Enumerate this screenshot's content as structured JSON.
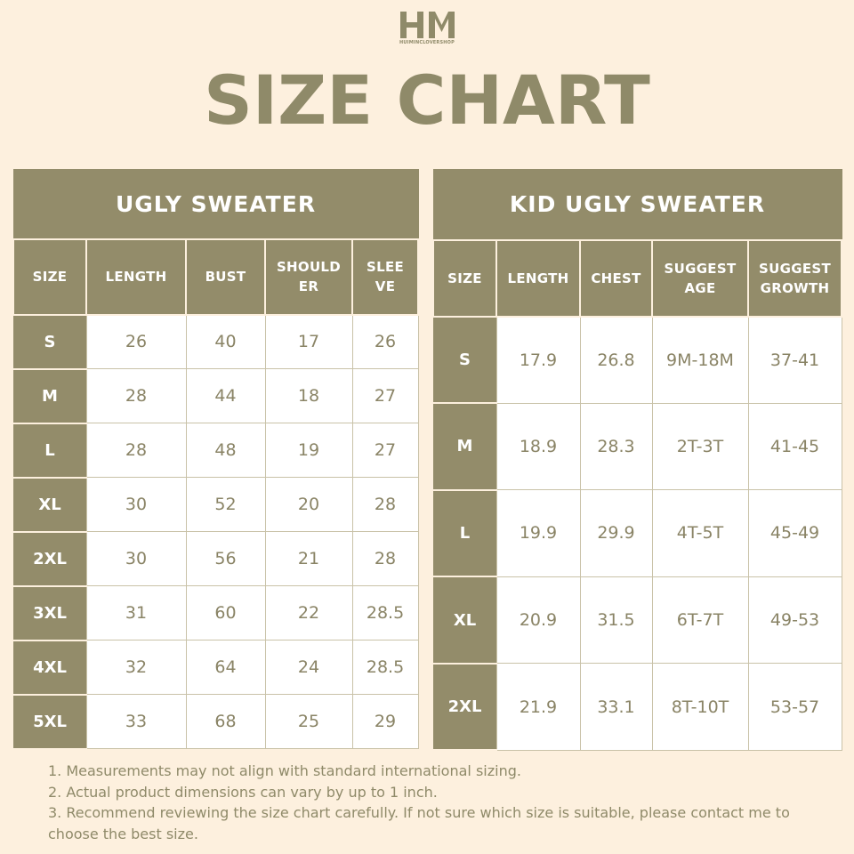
{
  "brand": {
    "logo_letters": "HM",
    "name": "HUIMINCLOVERSHOP"
  },
  "title": "SIZE CHART",
  "colors": {
    "background": "#fdf0de",
    "accent": "#938c6a",
    "cell": "#ffffff"
  },
  "adult": {
    "title": "UGLY SWEATER",
    "headers": [
      "SIZE",
      "LENGTH",
      "BUST",
      "SHOULD ER",
      "SLEE VE"
    ],
    "headers_lines": [
      [
        "SIZE"
      ],
      [
        "LENGTH"
      ],
      [
        "BUST"
      ],
      [
        "SHOULD",
        "ER"
      ],
      [
        "SLEE",
        "VE"
      ]
    ],
    "rows": [
      [
        "S",
        "26",
        "40",
        "17",
        "26"
      ],
      [
        "M",
        "28",
        "44",
        "18",
        "27"
      ],
      [
        "L",
        "28",
        "48",
        "19",
        "27"
      ],
      [
        "XL",
        "30",
        "52",
        "20",
        "28"
      ],
      [
        "2XL",
        "30",
        "56",
        "21",
        "28"
      ],
      [
        "3XL",
        "31",
        "60",
        "22",
        "28.5"
      ],
      [
        "4XL",
        "32",
        "64",
        "24",
        "28.5"
      ],
      [
        "5XL",
        "33",
        "68",
        "25",
        "29"
      ]
    ]
  },
  "kid": {
    "title": "KID UGLY SWEATER",
    "headers": [
      "SIZE",
      "LENGTH",
      "CHEST",
      "SUGGEST AGE",
      "SUGGEST GROWTH"
    ],
    "headers_lines": [
      [
        "SIZE"
      ],
      [
        "LENGTH"
      ],
      [
        "CHEST"
      ],
      [
        "SUGGEST",
        "AGE"
      ],
      [
        "SUGGEST",
        "GROWTH"
      ]
    ],
    "rows": [
      [
        "S",
        "17.9",
        "26.8",
        "9M-18M",
        "37-41"
      ],
      [
        "M",
        "18.9",
        "28.3",
        "2T-3T",
        "41-45"
      ],
      [
        "L",
        "19.9",
        "29.9",
        "4T-5T",
        "45-49"
      ],
      [
        "XL",
        "20.9",
        "31.5",
        "6T-7T",
        "49-53"
      ],
      [
        "2XL",
        "21.9",
        "33.1",
        "8T-10T",
        "53-57"
      ]
    ]
  },
  "notes": [
    "1. Measurements may not align with standard international sizing.",
    "2. Actual product dimensions can vary by up to 1 inch.",
    "3. Recommend reviewing the size chart carefully. If not sure which size is suitable, please contact me to choose the best size."
  ]
}
